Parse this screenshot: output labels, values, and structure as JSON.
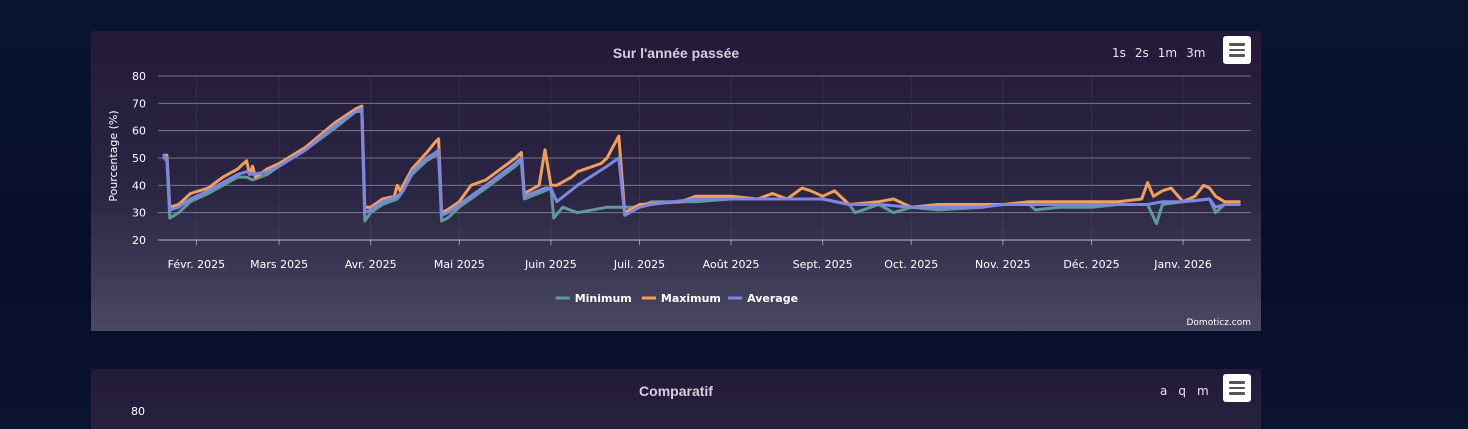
{
  "chart_panel": {
    "title": "Sur l'année passée",
    "zoom_buttons": [
      "1s",
      "2s",
      "1m",
      "3m"
    ],
    "credits": "Domoticz.com"
  },
  "compare_panel": {
    "title": "Comparatif",
    "zoom_buttons": [
      "a",
      "q",
      "m"
    ],
    "first_tick": "80"
  },
  "chart_data": {
    "type": "line",
    "title": "Sur l'année passée",
    "ylabel": "Pourcentage (%)",
    "xlabel": "",
    "ylim": [
      20,
      80
    ],
    "yticks": [
      "80",
      "70",
      "60",
      "50",
      "40",
      "30",
      "20"
    ],
    "grid": true,
    "legend_placement": "bottom-center",
    "x_range": [
      "2025-01-19",
      "2026-01-24"
    ],
    "x_tick_labels": [
      {
        "date": "2025-02-01",
        "label": "Févr. 2025"
      },
      {
        "date": "2025-03-01",
        "label": "Mars 2025"
      },
      {
        "date": "2025-04-01",
        "label": "Avr. 2025"
      },
      {
        "date": "2025-05-01",
        "label": "Mai 2025"
      },
      {
        "date": "2025-06-01",
        "label": "Juin 2025"
      },
      {
        "date": "2025-07-01",
        "label": "Juil. 2025"
      },
      {
        "date": "2025-08-01",
        "label": "Août 2025"
      },
      {
        "date": "2025-09-01",
        "label": "Sept. 2025"
      },
      {
        "date": "2025-10-01",
        "label": "Oct. 2025"
      },
      {
        "date": "2025-11-01",
        "label": "Nov. 2025"
      },
      {
        "date": "2025-12-01",
        "label": "Déc. 2025"
      },
      {
        "date": "2026-01-01",
        "label": "Janv. 2026"
      }
    ],
    "series": [
      {
        "name": "Minimum",
        "color": "#5f9a99",
        "points": [
          [
            "2025-01-21",
            50
          ],
          [
            "2025-01-22",
            49
          ],
          [
            "2025-01-23",
            28
          ],
          [
            "2025-01-26",
            30
          ],
          [
            "2025-01-30",
            34
          ],
          [
            "2025-02-05",
            37
          ],
          [
            "2025-02-10",
            40
          ],
          [
            "2025-02-15",
            43
          ],
          [
            "2025-02-18",
            43
          ],
          [
            "2025-02-20",
            42
          ],
          [
            "2025-02-25",
            44
          ],
          [
            "2025-03-01",
            47
          ],
          [
            "2025-03-10",
            53
          ],
          [
            "2025-03-20",
            61
          ],
          [
            "2025-03-27",
            67
          ],
          [
            "2025-03-29",
            67
          ],
          [
            "2025-03-30",
            27
          ],
          [
            "2025-04-01",
            30
          ],
          [
            "2025-04-05",
            33
          ],
          [
            "2025-04-10",
            35
          ],
          [
            "2025-04-12",
            38
          ],
          [
            "2025-04-15",
            44
          ],
          [
            "2025-04-20",
            49
          ],
          [
            "2025-04-23",
            51
          ],
          [
            "2025-04-24",
            51
          ],
          [
            "2025-04-25",
            27
          ],
          [
            "2025-04-27",
            28
          ],
          [
            "2025-05-01",
            32
          ],
          [
            "2025-05-10",
            39
          ],
          [
            "2025-05-20",
            47
          ],
          [
            "2025-05-22",
            49
          ],
          [
            "2025-05-23",
            35
          ],
          [
            "2025-05-30",
            38
          ],
          [
            "2025-06-01",
            39
          ],
          [
            "2025-06-02",
            28
          ],
          [
            "2025-06-05",
            32
          ],
          [
            "2025-06-10",
            30
          ],
          [
            "2025-06-20",
            32
          ],
          [
            "2025-07-01",
            32
          ],
          [
            "2025-07-05",
            34
          ],
          [
            "2025-07-20",
            34
          ],
          [
            "2025-08-01",
            35
          ],
          [
            "2025-08-20",
            35
          ],
          [
            "2025-09-01",
            35
          ],
          [
            "2025-09-10",
            33
          ],
          [
            "2025-09-12",
            30
          ],
          [
            "2025-09-20",
            33
          ],
          [
            "2025-09-25",
            30
          ],
          [
            "2025-10-01",
            32
          ],
          [
            "2025-10-10",
            31
          ],
          [
            "2025-10-25",
            32
          ],
          [
            "2025-11-01",
            33
          ],
          [
            "2025-11-10",
            33
          ],
          [
            "2025-11-12",
            31
          ],
          [
            "2025-11-20",
            32
          ],
          [
            "2025-12-01",
            32
          ],
          [
            "2025-12-10",
            33
          ],
          [
            "2025-12-20",
            33
          ],
          [
            "2025-12-23",
            26
          ],
          [
            "2025-12-25",
            33
          ],
          [
            "2026-01-01",
            34
          ],
          [
            "2026-01-10",
            35
          ],
          [
            "2026-01-12",
            30
          ],
          [
            "2026-01-15",
            33
          ],
          [
            "2026-01-20",
            33
          ]
        ]
      },
      {
        "name": "Maximum",
        "color": "#f0a05a",
        "points": [
          [
            "2025-01-21",
            51
          ],
          [
            "2025-01-22",
            51
          ],
          [
            "2025-01-23",
            32
          ],
          [
            "2025-01-26",
            33
          ],
          [
            "2025-01-30",
            37
          ],
          [
            "2025-02-05",
            39
          ],
          [
            "2025-02-10",
            43
          ],
          [
            "2025-02-15",
            46
          ],
          [
            "2025-02-18",
            49
          ],
          [
            "2025-02-19",
            44
          ],
          [
            "2025-02-20",
            47
          ],
          [
            "2025-02-21",
            43
          ],
          [
            "2025-02-25",
            46
          ],
          [
            "2025-03-01",
            48
          ],
          [
            "2025-03-10",
            54
          ],
          [
            "2025-03-20",
            63
          ],
          [
            "2025-03-27",
            68
          ],
          [
            "2025-03-29",
            69
          ],
          [
            "2025-03-30",
            32
          ],
          [
            "2025-04-01",
            32
          ],
          [
            "2025-04-05",
            35
          ],
          [
            "2025-04-09",
            36
          ],
          [
            "2025-04-10",
            40
          ],
          [
            "2025-04-11",
            38
          ],
          [
            "2025-04-15",
            46
          ],
          [
            "2025-04-20",
            52
          ],
          [
            "2025-04-23",
            56
          ],
          [
            "2025-04-24",
            57
          ],
          [
            "2025-04-25",
            30
          ],
          [
            "2025-04-27",
            31
          ],
          [
            "2025-05-01",
            34
          ],
          [
            "2025-05-05",
            40
          ],
          [
            "2025-05-10",
            42
          ],
          [
            "2025-05-20",
            50
          ],
          [
            "2025-05-22",
            52
          ],
          [
            "2025-05-23",
            37
          ],
          [
            "2025-05-28",
            40
          ],
          [
            "2025-05-30",
            53
          ],
          [
            "2025-06-01",
            40
          ],
          [
            "2025-06-03",
            40
          ],
          [
            "2025-06-08",
            43
          ],
          [
            "2025-06-10",
            45
          ],
          [
            "2025-06-18",
            48
          ],
          [
            "2025-06-20",
            50
          ],
          [
            "2025-06-24",
            58
          ],
          [
            "2025-06-26",
            30
          ],
          [
            "2025-07-01",
            33
          ],
          [
            "2025-07-15",
            34
          ],
          [
            "2025-07-20",
            36
          ],
          [
            "2025-08-01",
            36
          ],
          [
            "2025-08-10",
            35
          ],
          [
            "2025-08-15",
            37
          ],
          [
            "2025-08-20",
            35
          ],
          [
            "2025-08-25",
            39
          ],
          [
            "2025-08-28",
            38
          ],
          [
            "2025-09-01",
            36
          ],
          [
            "2025-09-05",
            38
          ],
          [
            "2025-09-10",
            33
          ],
          [
            "2025-09-20",
            34
          ],
          [
            "2025-09-25",
            35
          ],
          [
            "2025-10-01",
            32
          ],
          [
            "2025-10-10",
            33
          ],
          [
            "2025-10-25",
            33
          ],
          [
            "2025-11-01",
            33
          ],
          [
            "2025-11-10",
            34
          ],
          [
            "2025-11-20",
            34
          ],
          [
            "2025-12-01",
            34
          ],
          [
            "2025-12-10",
            34
          ],
          [
            "2025-12-18",
            35
          ],
          [
            "2025-12-20",
            41
          ],
          [
            "2025-12-22",
            36
          ],
          [
            "2025-12-25",
            38
          ],
          [
            "2025-12-28",
            39
          ],
          [
            "2026-01-01",
            34
          ],
          [
            "2026-01-05",
            36
          ],
          [
            "2026-01-08",
            40
          ],
          [
            "2026-01-10",
            39
          ],
          [
            "2026-01-12",
            36
          ],
          [
            "2026-01-15",
            34
          ],
          [
            "2026-01-20",
            34
          ]
        ]
      },
      {
        "name": "Average",
        "color": "#7d86e3",
        "points": [
          [
            "2025-01-21",
            51
          ],
          [
            "2025-01-22",
            50
          ],
          [
            "2025-01-23",
            31
          ],
          [
            "2025-01-26",
            32
          ],
          [
            "2025-01-30",
            35
          ],
          [
            "2025-02-05",
            38
          ],
          [
            "2025-02-10",
            41
          ],
          [
            "2025-02-15",
            44
          ],
          [
            "2025-02-18",
            45
          ],
          [
            "2025-02-20",
            44
          ],
          [
            "2025-02-25",
            45
          ],
          [
            "2025-03-01",
            47
          ],
          [
            "2025-03-10",
            53
          ],
          [
            "2025-03-20",
            62
          ],
          [
            "2025-03-27",
            67
          ],
          [
            "2025-03-29",
            68
          ],
          [
            "2025-03-30",
            30
          ],
          [
            "2025-04-01",
            31
          ],
          [
            "2025-04-05",
            34
          ],
          [
            "2025-04-10",
            36
          ],
          [
            "2025-04-12",
            38
          ],
          [
            "2025-04-15",
            45
          ],
          [
            "2025-04-20",
            50
          ],
          [
            "2025-04-23",
            52
          ],
          [
            "2025-04-24",
            53
          ],
          [
            "2025-04-25",
            29
          ],
          [
            "2025-04-27",
            30
          ],
          [
            "2025-05-01",
            33
          ],
          [
            "2025-05-10",
            40
          ],
          [
            "2025-05-20",
            48
          ],
          [
            "2025-05-22",
            50
          ],
          [
            "2025-05-23",
            36
          ],
          [
            "2025-05-30",
            39
          ],
          [
            "2025-06-01",
            39
          ],
          [
            "2025-06-03",
            34
          ],
          [
            "2025-06-10",
            40
          ],
          [
            "2025-06-20",
            47
          ],
          [
            "2025-06-24",
            50
          ],
          [
            "2025-06-26",
            29
          ],
          [
            "2025-07-01",
            32
          ],
          [
            "2025-07-05",
            33
          ],
          [
            "2025-07-20",
            35
          ],
          [
            "2025-08-01",
            35
          ],
          [
            "2025-08-20",
            35
          ],
          [
            "2025-09-01",
            35
          ],
          [
            "2025-09-10",
            33
          ],
          [
            "2025-09-20",
            33
          ],
          [
            "2025-10-01",
            32
          ],
          [
            "2025-10-10",
            32
          ],
          [
            "2025-10-25",
            32
          ],
          [
            "2025-11-01",
            33
          ],
          [
            "2025-11-10",
            33
          ],
          [
            "2025-11-20",
            33
          ],
          [
            "2025-12-01",
            33
          ],
          [
            "2025-12-10",
            33
          ],
          [
            "2025-12-20",
            33
          ],
          [
            "2025-12-25",
            34
          ],
          [
            "2026-01-01",
            34
          ],
          [
            "2026-01-10",
            35
          ],
          [
            "2026-01-12",
            32
          ],
          [
            "2026-01-15",
            33
          ],
          [
            "2026-01-20",
            33
          ]
        ]
      }
    ]
  }
}
